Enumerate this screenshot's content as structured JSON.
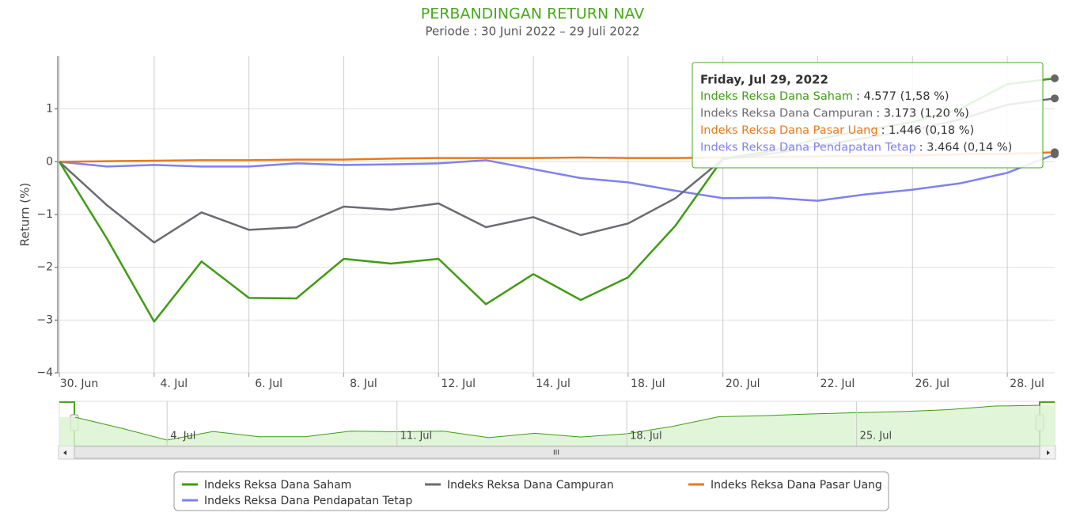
{
  "chart_data": {
    "type": "line",
    "title": "PERBANDINGAN RETURN NAV",
    "subtitle": "Periode : 30 Juni 2022 – 29 Juli 2022",
    "y_label": "Return (%)",
    "categories": [
      "30. Jun",
      null,
      "4. Jul",
      null,
      "6. Jul",
      null,
      "8. Jul",
      null,
      "12. Jul",
      null,
      "14. Jul",
      null,
      "18. Jul",
      null,
      "20. Jul",
      null,
      "22. Jul",
      null,
      "26. Jul",
      null,
      "28. Jul",
      null
    ],
    "ylim": [
      -4,
      2
    ],
    "yticks": [
      {
        "value": -4,
        "label": "−4"
      },
      {
        "value": -3,
        "label": "−3"
      },
      {
        "value": -2,
        "label": "−2"
      },
      {
        "value": -1,
        "label": "−1"
      },
      0,
      1
    ],
    "grid": true,
    "series": [
      {
        "name": "Indeks Reksa Dana Saham",
        "color": "#3f9c14",
        "values": [
          0,
          -1.45,
          -3.03,
          -1.89,
          -2.58,
          -2.59,
          -1.84,
          -1.93,
          -1.84,
          -2.7,
          -2.13,
          -2.62,
          -2.19,
          -1.21,
          0.06,
          0.2,
          0.43,
          0.6,
          0.75,
          1.0,
          1.47,
          1.58
        ]
      },
      {
        "name": "Indeks Reksa Dana Campuran",
        "color": "#6b6b73",
        "values": [
          0,
          -0.82,
          -1.53,
          -0.96,
          -1.29,
          -1.24,
          -0.85,
          -0.91,
          -0.79,
          -1.24,
          -1.05,
          -1.39,
          -1.17,
          -0.69,
          0.05,
          0.15,
          0.3,
          0.45,
          0.6,
          0.8,
          1.08,
          1.2
        ]
      },
      {
        "name": "Indeks Reksa Dana Pasar Uang",
        "color": "#e8791c",
        "values": [
          0,
          0.01,
          0.02,
          0.03,
          0.03,
          0.04,
          0.04,
          0.06,
          0.07,
          0.07,
          0.07,
          0.08,
          0.07,
          0.07,
          0.08,
          0.09,
          0.1,
          0.11,
          0.12,
          0.14,
          0.15,
          0.18
        ]
      },
      {
        "name": "Indeks Reksa Dana Pendapatan Tetap",
        "color": "#8080f0",
        "values": [
          0,
          -0.09,
          -0.06,
          -0.09,
          -0.09,
          -0.03,
          -0.06,
          -0.05,
          -0.03,
          0.03,
          -0.14,
          -0.31,
          -0.39,
          -0.55,
          -0.69,
          -0.68,
          -0.74,
          -0.62,
          -0.53,
          -0.41,
          -0.21,
          0.14
        ]
      }
    ],
    "tooltip": {
      "title": "Friday, Jul 29, 2022",
      "items": [
        ": 4.577 (1,58 %)",
        ": 3.173 (1,20 %)",
        ": 1.446 (0,18 %)",
        ": 3.464 (0,14 %)"
      ]
    },
    "navigator": {
      "labels": [
        "4. Jul",
        "11. Jul",
        "18. Jul",
        "25. Jul"
      ],
      "label_positions": [
        2,
        7,
        12,
        17
      ]
    }
  }
}
